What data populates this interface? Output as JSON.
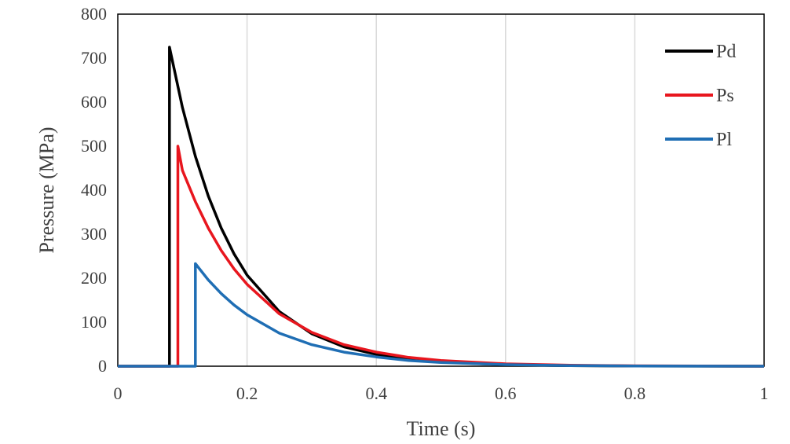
{
  "chart_data": {
    "type": "line",
    "title": "",
    "xlabel": "Time (s)",
    "ylabel": "Pressure (MPa)",
    "xlim": [
      0,
      1
    ],
    "ylim": [
      0,
      800
    ],
    "x_ticks": [
      "0",
      "0.2",
      "0.4",
      "0.6",
      "0.8",
      "1"
    ],
    "y_ticks": [
      "0",
      "100",
      "200",
      "300",
      "400",
      "500",
      "600",
      "700",
      "800"
    ],
    "grid": "vertical",
    "legend_position": "top-right",
    "series": [
      {
        "name": "Pd",
        "color": "#000000",
        "points": [
          [
            0,
            0
          ],
          [
            0.08,
            0
          ],
          [
            0.08,
            725
          ],
          [
            0.1,
            588
          ],
          [
            0.12,
            477
          ],
          [
            0.14,
            387
          ],
          [
            0.16,
            314
          ],
          [
            0.18,
            255
          ],
          [
            0.2,
            207
          ],
          [
            0.25,
            124
          ],
          [
            0.3,
            74
          ],
          [
            0.35,
            44
          ],
          [
            0.4,
            27
          ],
          [
            0.45,
            16
          ],
          [
            0.5,
            9.5
          ],
          [
            0.6,
            3.4
          ],
          [
            0.7,
            1.2
          ],
          [
            0.8,
            0.4
          ],
          [
            1,
            0
          ]
        ]
      },
      {
        "name": "Ps",
        "color": "#e8161e",
        "points": [
          [
            0,
            0
          ],
          [
            0.093,
            0
          ],
          [
            0.093,
            500
          ],
          [
            0.1,
            445
          ],
          [
            0.12,
            374
          ],
          [
            0.14,
            314
          ],
          [
            0.16,
            263
          ],
          [
            0.18,
            221
          ],
          [
            0.2,
            186
          ],
          [
            0.25,
            119
          ],
          [
            0.3,
            77
          ],
          [
            0.35,
            49
          ],
          [
            0.4,
            32
          ],
          [
            0.45,
            20
          ],
          [
            0.5,
            13
          ],
          [
            0.6,
            5.4
          ],
          [
            0.7,
            2.2
          ],
          [
            0.8,
            0.9
          ],
          [
            1,
            0
          ]
        ]
      },
      {
        "name": "Pl",
        "color": "#1f6eb4",
        "points": [
          [
            0,
            0
          ],
          [
            0.12,
            0
          ],
          [
            0.12,
            233
          ],
          [
            0.14,
            196
          ],
          [
            0.16,
            165
          ],
          [
            0.18,
            139
          ],
          [
            0.2,
            117
          ],
          [
            0.25,
            75
          ],
          [
            0.3,
            49
          ],
          [
            0.35,
            32
          ],
          [
            0.4,
            21
          ],
          [
            0.45,
            13
          ],
          [
            0.5,
            8.6
          ],
          [
            0.6,
            3.6
          ],
          [
            0.7,
            1.5
          ],
          [
            0.8,
            0.6
          ],
          [
            1,
            0
          ]
        ]
      }
    ]
  }
}
